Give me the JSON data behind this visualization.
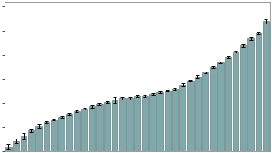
{
  "title": "",
  "bar_color": "#7fa8aa",
  "bar_edge_color": "#506a6c",
  "background_color": "#ffffff",
  "n_bars": 35,
  "values": [
    0.18,
    0.42,
    0.62,
    0.85,
    1.05,
    1.2,
    1.32,
    1.44,
    1.55,
    1.66,
    1.76,
    1.86,
    1.95,
    2.04,
    2.12,
    2.2,
    2.2,
    2.28,
    2.28,
    2.36,
    2.44,
    2.52,
    2.6,
    2.76,
    2.92,
    3.1,
    3.28,
    3.5,
    3.68,
    3.9,
    4.12,
    4.38,
    4.68,
    4.92,
    5.4
  ],
  "errors": [
    0.12,
    0.1,
    0.12,
    0.06,
    0.06,
    0.05,
    0.04,
    0.04,
    0.04,
    0.04,
    0.04,
    0.04,
    0.04,
    0.04,
    0.14,
    0.05,
    0.05,
    0.04,
    0.04,
    0.04,
    0.04,
    0.04,
    0.04,
    0.04,
    0.04,
    0.04,
    0.04,
    0.04,
    0.04,
    0.04,
    0.04,
    0.04,
    0.04,
    0.06,
    0.1
  ],
  "ylim": [
    0,
    6.2
  ],
  "yticks": [
    0,
    1,
    2,
    3,
    4,
    5,
    6
  ],
  "border_color": "#999999",
  "figsize": [
    2.99,
    1.69
  ],
  "dpi": 100
}
